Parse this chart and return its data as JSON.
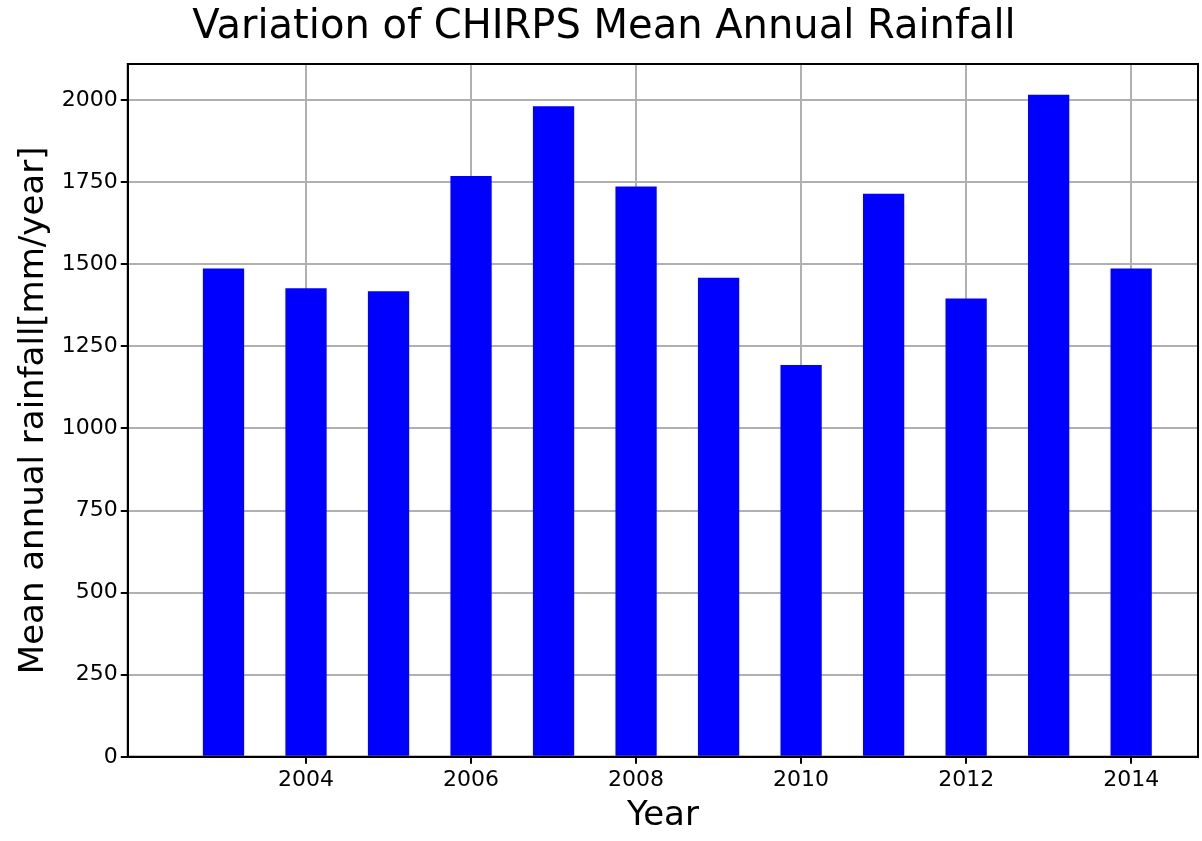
{
  "chart_data": {
    "type": "bar",
    "title": "Variation of CHIRPS Mean Annual Rainfall",
    "xlabel": "Year",
    "ylabel": "Mean annual rainfall[mm/year]",
    "x": [
      2003,
      2004,
      2005,
      2006,
      2007,
      2008,
      2009,
      2010,
      2011,
      2012,
      2013,
      2014
    ],
    "values": [
      1487,
      1427,
      1418,
      1769,
      1981,
      1737,
      1459,
      1193,
      1715,
      1396,
      2016,
      1487
    ],
    "color": "#0000ff",
    "xlim": [
      2001.84,
      2014.81
    ],
    "xticks": [
      2004,
      2006,
      2008,
      2010,
      2012,
      2014
    ],
    "ylim": [
      0,
      2110
    ],
    "yticks": [
      0,
      250,
      500,
      750,
      1000,
      1250,
      1500,
      1750,
      2000
    ],
    "grid": true
  }
}
